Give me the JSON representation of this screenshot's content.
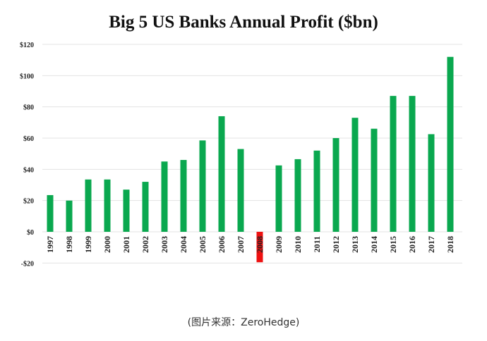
{
  "chart_data": {
    "type": "bar",
    "title": "Big 5 US Banks Annual Profit ($bn)",
    "xlabel": "",
    "ylabel": "",
    "ylim": [
      -20,
      120
    ],
    "yticks": [
      -20,
      0,
      20,
      40,
      60,
      80,
      100,
      120
    ],
    "ytick_labels": [
      "-$20",
      "$0",
      "$20",
      "$40",
      "$60",
      "$80",
      "$100",
      "$120"
    ],
    "grid": true,
    "categories": [
      "1997",
      "1998",
      "1999",
      "2000",
      "2001",
      "2002",
      "2003",
      "2004",
      "2005",
      "2006",
      "2007",
      "2008",
      "2009",
      "2010",
      "2011",
      "2012",
      "2013",
      "2014",
      "2015",
      "2016",
      "2017",
      "2018"
    ],
    "values": [
      23.5,
      20,
      33.5,
      33.5,
      27,
      32,
      45,
      46,
      58.5,
      74,
      53,
      -19.5,
      42.5,
      46.5,
      52,
      60,
      73,
      66,
      87,
      87,
      62.5,
      112
    ],
    "colors": {
      "positive": "#0aa84f",
      "negative": "#ee1111"
    }
  },
  "caption": "(图片来源：ZeroHedge)"
}
